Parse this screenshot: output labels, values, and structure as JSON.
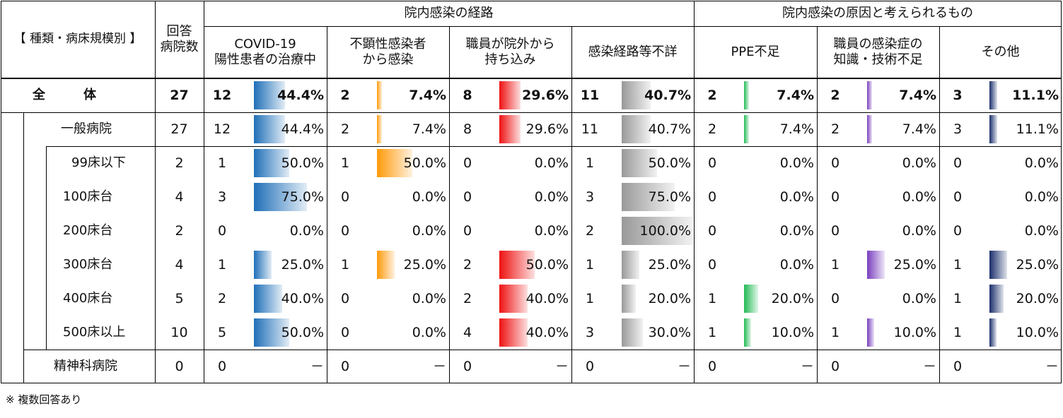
{
  "header": {
    "category": "【 種類・病床規模別 】",
    "respond_count": [
      "回答",
      "病院数"
    ],
    "group_route": "院内感染の経路",
    "group_cause": "院内感染の原因と考えられるもの",
    "columns": [
      [
        "COVID-19",
        "陽性患者の治療中"
      ],
      [
        "不顕性感染者",
        "から感染"
      ],
      [
        "職員が院外から",
        "持ち込み"
      ],
      [
        "感染経路等不詳"
      ],
      [
        "PPE不足"
      ],
      [
        "職員の感染症の",
        "知識・技術不足"
      ],
      [
        "その他"
      ]
    ]
  },
  "bar_colors": [
    "#1f6fb8",
    "#ff9a0a",
    "#ee1111",
    "#999999",
    "#22bb55",
    "#7a3fbf",
    "#1a2e6b"
  ],
  "rows": [
    {
      "label": "全　　　体",
      "n": "27",
      "bold": true,
      "cells": [
        [
          "12",
          "44.4%",
          0.444
        ],
        [
          "2",
          "7.4%",
          0.074
        ],
        [
          "8",
          "29.6%",
          0.296
        ],
        [
          "11",
          "40.7%",
          0.407
        ],
        [
          "2",
          "7.4%",
          0.074
        ],
        [
          "2",
          "7.4%",
          0.074
        ],
        [
          "3",
          "11.1%",
          0.111
        ]
      ]
    },
    {
      "label": "一般病院",
      "n": "27",
      "cells": [
        [
          "12",
          "44.4%",
          0.444
        ],
        [
          "2",
          "7.4%",
          0.074
        ],
        [
          "8",
          "29.6%",
          0.296
        ],
        [
          "11",
          "40.7%",
          0.407
        ],
        [
          "2",
          "7.4%",
          0.074
        ],
        [
          "2",
          "7.4%",
          0.074
        ],
        [
          "3",
          "11.1%",
          0.111
        ]
      ]
    },
    {
      "label": "99床以下",
      "n": "2",
      "cells": [
        [
          "1",
          "50.0%",
          0.5
        ],
        [
          "1",
          "50.0%",
          0.5
        ],
        [
          "0",
          "0.0%",
          0
        ],
        [
          "1",
          "50.0%",
          0.5
        ],
        [
          "0",
          "0.0%",
          0
        ],
        [
          "0",
          "0.0%",
          0
        ],
        [
          "0",
          "0.0%",
          0
        ]
      ]
    },
    {
      "label": "100床台",
      "n": "4",
      "cells": [
        [
          "3",
          "75.0%",
          0.75
        ],
        [
          "0",
          "0.0%",
          0
        ],
        [
          "0",
          "0.0%",
          0
        ],
        [
          "3",
          "75.0%",
          0.75
        ],
        [
          "0",
          "0.0%",
          0
        ],
        [
          "0",
          "0.0%",
          0
        ],
        [
          "0",
          "0.0%",
          0
        ]
      ]
    },
    {
      "label": "200床台",
      "n": "2",
      "cells": [
        [
          "0",
          "0.0%",
          0
        ],
        [
          "0",
          "0.0%",
          0
        ],
        [
          "0",
          "0.0%",
          0
        ],
        [
          "2",
          "100.0%",
          1.0
        ],
        [
          "0",
          "0.0%",
          0
        ],
        [
          "0",
          "0.0%",
          0
        ],
        [
          "0",
          "0.0%",
          0
        ]
      ]
    },
    {
      "label": "300床台",
      "n": "4",
      "cells": [
        [
          "1",
          "25.0%",
          0.25
        ],
        [
          "1",
          "25.0%",
          0.25
        ],
        [
          "2",
          "50.0%",
          0.5
        ],
        [
          "1",
          "25.0%",
          0.25
        ],
        [
          "0",
          "0.0%",
          0
        ],
        [
          "1",
          "25.0%",
          0.25
        ],
        [
          "1",
          "25.0%",
          0.25
        ]
      ]
    },
    {
      "label": "400床台",
      "n": "5",
      "cells": [
        [
          "2",
          "40.0%",
          0.4
        ],
        [
          "0",
          "0.0%",
          0
        ],
        [
          "2",
          "40.0%",
          0.4
        ],
        [
          "1",
          "20.0%",
          0.2
        ],
        [
          "1",
          "20.0%",
          0.2
        ],
        [
          "0",
          "0.0%",
          0
        ],
        [
          "1",
          "20.0%",
          0.2
        ]
      ]
    },
    {
      "label": "500床以上",
      "n": "10",
      "cells": [
        [
          "5",
          "50.0%",
          0.5
        ],
        [
          "0",
          "0.0%",
          0
        ],
        [
          "4",
          "40.0%",
          0.4
        ],
        [
          "3",
          "30.0%",
          0.3
        ],
        [
          "1",
          "10.0%",
          0.1
        ],
        [
          "1",
          "10.0%",
          0.1
        ],
        [
          "1",
          "10.0%",
          0.1
        ]
      ]
    },
    {
      "label": "精神科病院",
      "n": "0",
      "cells": [
        [
          "0",
          "－",
          0
        ],
        [
          "0",
          "－",
          0
        ],
        [
          "0",
          "－",
          0
        ],
        [
          "0",
          "－",
          0
        ],
        [
          "0",
          "－",
          0
        ],
        [
          "0",
          "－",
          0
        ],
        [
          "0",
          "－",
          0
        ]
      ]
    }
  ],
  "note": "※ 複数回答あり"
}
